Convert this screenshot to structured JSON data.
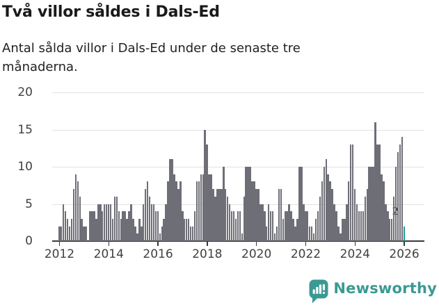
{
  "header": {
    "title": "Två villor såldes i Dals-Ed",
    "subtitle": "Antal sålda villor i Dals-Ed under de senaste tre månaderna."
  },
  "chart_data": {
    "type": "bar",
    "title": "Två villor såldes i Dals-Ed",
    "subtitle": "Antal sålda villor i Dals-Ed under de senaste tre månaderna.",
    "unit": "sålda villor (rullande 3 månader)",
    "frequency": "monthly",
    "x_start": "2012-01",
    "x_end": "2026-01",
    "x_tick_labels": [
      "2012",
      "2014",
      "2016",
      "2018",
      "2020",
      "2022",
      "2024",
      "2026"
    ],
    "y_ticks": [
      0,
      5,
      10,
      15,
      20
    ],
    "ylim": [
      0,
      20
    ],
    "grid": "horizontal",
    "legend": "none",
    "values": [
      2,
      2,
      5,
      4,
      3,
      2,
      3,
      7,
      9,
      8,
      6,
      3,
      2,
      2,
      0,
      4,
      4,
      4,
      3,
      5,
      5,
      4,
      5,
      5,
      5,
      5,
      3,
      6,
      6,
      4,
      3,
      4,
      4,
      3,
      4,
      5,
      3,
      2,
      1,
      3,
      2,
      5,
      7,
      8,
      6,
      5,
      5,
      4,
      4,
      1,
      2,
      3,
      5,
      8,
      11,
      11,
      9,
      8,
      7,
      8,
      4,
      3,
      3,
      3,
      2,
      2,
      4,
      8,
      8,
      9,
      9,
      15,
      13,
      9,
      9,
      7,
      6,
      7,
      7,
      7,
      10,
      7,
      6,
      5,
      4,
      4,
      3,
      4,
      4,
      1,
      6,
      10,
      10,
      10,
      8,
      8,
      7,
      7,
      5,
      5,
      4,
      2,
      5,
      4,
      4,
      1,
      2,
      7,
      7,
      3,
      4,
      4,
      5,
      4,
      3,
      2,
      3,
      10,
      10,
      5,
      4,
      4,
      2,
      2,
      1,
      3,
      4,
      6,
      8,
      10,
      11,
      9,
      8,
      7,
      5,
      4,
      2,
      1,
      3,
      3,
      5,
      8,
      13,
      13,
      7,
      5,
      4,
      4,
      4,
      6,
      7,
      10,
      10,
      10,
      16,
      13,
      13,
      9,
      8,
      5,
      4,
      3,
      3,
      6,
      10,
      12,
      13,
      14,
      2
    ],
    "highlight_last": true,
    "annotation": {
      "label": "2",
      "value": 2
    },
    "colors": {
      "bar": "#6e6e77",
      "highlight": "#15a29e",
      "gridline": "#e2e2e2",
      "axis": "#3a3a3a"
    }
  },
  "footer": {
    "brand": "Newsworthy",
    "brand_color": "#3a9a93"
  }
}
